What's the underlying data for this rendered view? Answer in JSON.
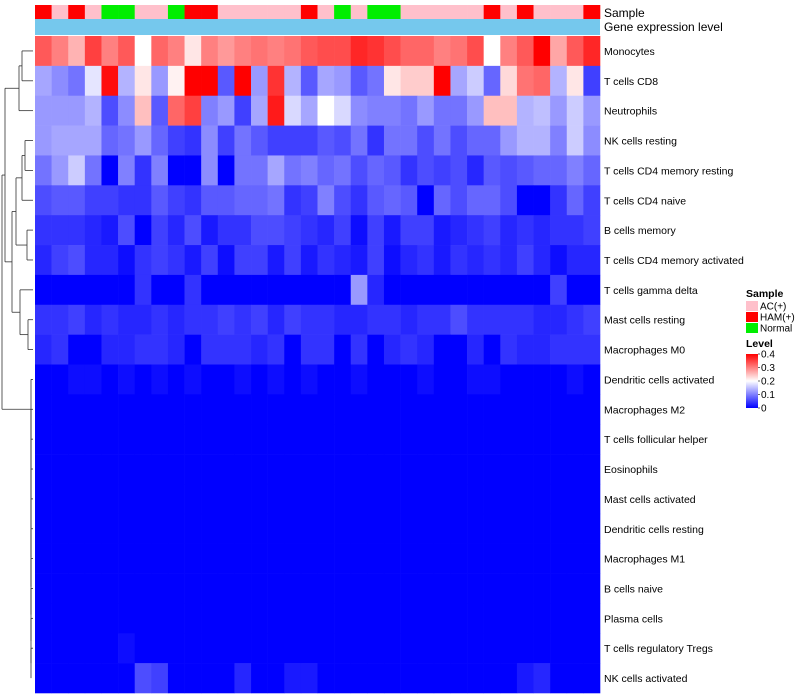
{
  "chart_data": {
    "type": "heatmap",
    "title": "",
    "annotations": {
      "sample_label": "Sample",
      "gene_label": "Gene expression level"
    },
    "columns": 34,
    "sample_groups": [
      "HAM(+)",
      "AC(+)",
      "HAM(+)",
      "AC(+)",
      "Normal",
      "Normal",
      "AC(+)",
      "AC(+)",
      "Normal",
      "HAM(+)",
      "HAM(+)",
      "AC(+)",
      "AC(+)",
      "AC(+)",
      "AC(+)",
      "AC(+)",
      "HAM(+)",
      "AC(+)",
      "Normal",
      "AC(+)",
      "Normal",
      "Normal",
      "AC(+)",
      "AC(+)",
      "AC(+)",
      "AC(+)",
      "AC(+)",
      "HAM(+)",
      "AC(+)",
      "HAM(+)",
      "AC(+)",
      "AC(+)",
      "AC(+)",
      "HAM(+)"
    ],
    "rows": [
      {
        "label": "Monocytes",
        "values": [
          0.33,
          0.3,
          0.26,
          0.35,
          0.3,
          0.33,
          0.2,
          0.32,
          0.3,
          0.22,
          0.3,
          0.28,
          0.3,
          0.31,
          0.3,
          0.31,
          0.33,
          0.34,
          0.34,
          0.37,
          0.36,
          0.34,
          0.32,
          0.32,
          0.3,
          0.31,
          0.34,
          0.2,
          0.3,
          0.33,
          0.4,
          0.27,
          0.33,
          0.37
        ]
      },
      {
        "label": "T cells CD8",
        "values": [
          0.13,
          0.11,
          0.09,
          0.18,
          0.39,
          0.14,
          0.22,
          0.12,
          0.21,
          0.4,
          0.4,
          0.07,
          0.4,
          0.12,
          0.36,
          0.14,
          0.07,
          0.13,
          0.12,
          0.07,
          0.09,
          0.22,
          0.24,
          0.24,
          0.4,
          0.13,
          0.16,
          0.08,
          0.23,
          0.31,
          0.32,
          0.14,
          0.22,
          0.05
        ]
      },
      {
        "label": "Neutrophils",
        "values": [
          0.12,
          0.12,
          0.12,
          0.14,
          0.06,
          0.11,
          0.25,
          0.07,
          0.32,
          0.35,
          0.1,
          0.12,
          0.05,
          0.13,
          0.38,
          0.17,
          0.13,
          0.2,
          0.17,
          0.11,
          0.1,
          0.1,
          0.09,
          0.12,
          0.09,
          0.09,
          0.12,
          0.25,
          0.25,
          0.14,
          0.15,
          0.12,
          0.16,
          0.12
        ]
      },
      {
        "label": "NK cells resting",
        "values": [
          0.12,
          0.13,
          0.13,
          0.13,
          0.08,
          0.09,
          0.12,
          0.08,
          0.05,
          0.04,
          0.11,
          0.05,
          0.09,
          0.07,
          0.05,
          0.05,
          0.05,
          0.07,
          0.06,
          0.09,
          0.04,
          0.09,
          0.09,
          0.06,
          0.09,
          0.06,
          0.08,
          0.08,
          0.12,
          0.14,
          0.14,
          0.1,
          0.16,
          0.11
        ]
      },
      {
        "label": "T cells CD4 memory resting",
        "values": [
          0.09,
          0.12,
          0.16,
          0.09,
          0.0,
          0.1,
          0.04,
          0.1,
          0.0,
          0.0,
          0.11,
          0.0,
          0.09,
          0.09,
          0.13,
          0.09,
          0.1,
          0.08,
          0.09,
          0.06,
          0.08,
          0.07,
          0.04,
          0.06,
          0.05,
          0.06,
          0.03,
          0.07,
          0.06,
          0.07,
          0.08,
          0.08,
          0.1,
          0.08
        ]
      },
      {
        "label": "T cells CD4 naive",
        "values": [
          0.06,
          0.07,
          0.07,
          0.05,
          0.05,
          0.04,
          0.04,
          0.07,
          0.05,
          0.04,
          0.07,
          0.07,
          0.08,
          0.08,
          0.09,
          0.04,
          0.05,
          0.1,
          0.06,
          0.04,
          0.07,
          0.08,
          0.07,
          0.0,
          0.08,
          0.06,
          0.08,
          0.08,
          0.06,
          0.0,
          0.0,
          0.04,
          0.08,
          0.05
        ]
      },
      {
        "label": "B cells memory",
        "values": [
          0.04,
          0.04,
          0.04,
          0.03,
          0.02,
          0.06,
          0.0,
          0.05,
          0.03,
          0.06,
          0.02,
          0.04,
          0.04,
          0.06,
          0.06,
          0.05,
          0.04,
          0.03,
          0.05,
          0.01,
          0.05,
          0.02,
          0.05,
          0.05,
          0.02,
          0.03,
          0.04,
          0.05,
          0.03,
          0.04,
          0.03,
          0.04,
          0.04,
          0.05
        ]
      },
      {
        "label": "T cells CD4 memory activated",
        "values": [
          0.03,
          0.05,
          0.06,
          0.03,
          0.03,
          0.01,
          0.04,
          0.05,
          0.04,
          0.02,
          0.05,
          0.01,
          0.05,
          0.05,
          0.02,
          0.05,
          0.02,
          0.04,
          0.03,
          0.02,
          0.05,
          0.01,
          0.03,
          0.04,
          0.02,
          0.04,
          0.03,
          0.04,
          0.03,
          0.05,
          0.03,
          0.01,
          0.03,
          0.03
        ]
      },
      {
        "label": "T cells gamma delta",
        "values": [
          0.0,
          0.0,
          0.0,
          0.0,
          0.0,
          0.0,
          0.04,
          0.0,
          0.0,
          0.04,
          0.0,
          0.0,
          0.0,
          0.0,
          0.0,
          0.0,
          0.0,
          0.0,
          0.0,
          0.12,
          0.03,
          0.0,
          0.0,
          0.0,
          0.0,
          0.0,
          0.0,
          0.0,
          0.0,
          0.0,
          0.0,
          0.05,
          0.0,
          0.0
        ]
      },
      {
        "label": "Mast cells resting",
        "values": [
          0.04,
          0.04,
          0.05,
          0.03,
          0.04,
          0.03,
          0.03,
          0.04,
          0.03,
          0.04,
          0.04,
          0.05,
          0.04,
          0.05,
          0.03,
          0.05,
          0.04,
          0.04,
          0.03,
          0.03,
          0.04,
          0.04,
          0.03,
          0.04,
          0.04,
          0.06,
          0.04,
          0.04,
          0.04,
          0.04,
          0.03,
          0.03,
          0.04,
          0.05
        ]
      },
      {
        "label": "Macrophages M0",
        "values": [
          0.03,
          0.04,
          0.0,
          0.0,
          0.03,
          0.03,
          0.04,
          0.04,
          0.03,
          0.0,
          0.04,
          0.04,
          0.04,
          0.03,
          0.04,
          0.0,
          0.04,
          0.04,
          0.0,
          0.04,
          0.0,
          0.03,
          0.04,
          0.03,
          0.0,
          0.0,
          0.03,
          0.0,
          0.04,
          0.03,
          0.03,
          0.04,
          0.04,
          0.04
        ]
      },
      {
        "label": "Dendritic cells activated",
        "values": [
          0.0,
          0.0,
          0.01,
          0.01,
          0.0,
          0.01,
          0.0,
          0.01,
          0.0,
          0.01,
          0.0,
          0.0,
          0.01,
          0.0,
          0.01,
          0.0,
          0.01,
          0.0,
          0.0,
          0.01,
          0.0,
          0.0,
          0.0,
          0.01,
          0.0,
          0.0,
          0.01,
          0.01,
          0.0,
          0.0,
          0.0,
          0.0,
          0.01,
          0.0
        ]
      },
      {
        "label": "Macrophages M2",
        "values": [
          0.0,
          0.0,
          0.0,
          0.0,
          0.0,
          0.0,
          0.0,
          0.0,
          0.0,
          0.0,
          0.0,
          0.0,
          0.0,
          0.0,
          0.0,
          0.0,
          0.0,
          0.0,
          0.0,
          0.0,
          0.0,
          0.0,
          0.0,
          0.0,
          0.0,
          0.0,
          0.0,
          0.0,
          0.0,
          0.0,
          0.0,
          0.0,
          0.0,
          0.0
        ]
      },
      {
        "label": "T cells follicular helper",
        "values": [
          0.0,
          0.0,
          0.0,
          0.0,
          0.0,
          0.0,
          0.0,
          0.0,
          0.0,
          0.0,
          0.0,
          0.0,
          0.0,
          0.0,
          0.0,
          0.0,
          0.0,
          0.0,
          0.0,
          0.0,
          0.0,
          0.0,
          0.0,
          0.0,
          0.0,
          0.0,
          0.0,
          0.0,
          0.0,
          0.0,
          0.0,
          0.0,
          0.0,
          0.0
        ]
      },
      {
        "label": "Eosinophils",
        "values": [
          0.0,
          0.0,
          0.0,
          0.0,
          0.0,
          0.0,
          0.0,
          0.0,
          0.0,
          0.0,
          0.0,
          0.0,
          0.0,
          0.0,
          0.0,
          0.0,
          0.0,
          0.0,
          0.0,
          0.0,
          0.0,
          0.0,
          0.0,
          0.0,
          0.0,
          0.0,
          0.0,
          0.0,
          0.0,
          0.0,
          0.0,
          0.0,
          0.0,
          0.0
        ]
      },
      {
        "label": "Mast cells activated",
        "values": [
          0.0,
          0.0,
          0.0,
          0.0,
          0.0,
          0.0,
          0.0,
          0.0,
          0.0,
          0.0,
          0.0,
          0.0,
          0.0,
          0.0,
          0.0,
          0.0,
          0.0,
          0.0,
          0.0,
          0.0,
          0.0,
          0.0,
          0.0,
          0.0,
          0.0,
          0.0,
          0.0,
          0.0,
          0.0,
          0.0,
          0.0,
          0.0,
          0.0,
          0.0
        ]
      },
      {
        "label": "Dendritic cells resting",
        "values": [
          0.0,
          0.0,
          0.0,
          0.0,
          0.0,
          0.0,
          0.0,
          0.0,
          0.0,
          0.0,
          0.0,
          0.0,
          0.0,
          0.0,
          0.0,
          0.0,
          0.0,
          0.0,
          0.0,
          0.0,
          0.0,
          0.0,
          0.0,
          0.0,
          0.0,
          0.0,
          0.0,
          0.0,
          0.0,
          0.0,
          0.0,
          0.0,
          0.0,
          0.0
        ]
      },
      {
        "label": "Macrophages M1",
        "values": [
          0.0,
          0.0,
          0.0,
          0.0,
          0.0,
          0.0,
          0.0,
          0.0,
          0.0,
          0.0,
          0.0,
          0.0,
          0.0,
          0.0,
          0.0,
          0.0,
          0.0,
          0.0,
          0.0,
          0.0,
          0.0,
          0.0,
          0.0,
          0.0,
          0.0,
          0.0,
          0.0,
          0.0,
          0.0,
          0.0,
          0.0,
          0.0,
          0.0,
          0.0
        ]
      },
      {
        "label": "B cells naive",
        "values": [
          0.0,
          0.0,
          0.0,
          0.0,
          0.0,
          0.0,
          0.0,
          0.0,
          0.0,
          0.0,
          0.0,
          0.0,
          0.0,
          0.0,
          0.0,
          0.0,
          0.0,
          0.0,
          0.0,
          0.0,
          0.0,
          0.0,
          0.0,
          0.0,
          0.0,
          0.0,
          0.0,
          0.0,
          0.0,
          0.0,
          0.0,
          0.0,
          0.0,
          0.0
        ]
      },
      {
        "label": "Plasma cells",
        "values": [
          0.0,
          0.0,
          0.0,
          0.0,
          0.0,
          0.0,
          0.0,
          0.0,
          0.0,
          0.0,
          0.0,
          0.0,
          0.0,
          0.0,
          0.0,
          0.0,
          0.0,
          0.0,
          0.0,
          0.0,
          0.0,
          0.0,
          0.0,
          0.0,
          0.0,
          0.0,
          0.0,
          0.0,
          0.0,
          0.0,
          0.0,
          0.0,
          0.0,
          0.0
        ]
      },
      {
        "label": "T cells regulatory  Tregs",
        "values": [
          0.0,
          0.0,
          0.0,
          0.0,
          0.0,
          0.01,
          0.0,
          0.0,
          0.0,
          0.0,
          0.0,
          0.0,
          0.0,
          0.0,
          0.0,
          0.0,
          0.0,
          0.0,
          0.0,
          0.0,
          0.0,
          0.0,
          0.0,
          0.0,
          0.0,
          0.0,
          0.0,
          0.0,
          0.0,
          0.0,
          0.0,
          0.0,
          0.0,
          0.0
        ]
      },
      {
        "label": "NK cells activated",
        "values": [
          0.0,
          0.0,
          0.0,
          0.0,
          0.0,
          0.0,
          0.06,
          0.05,
          0.0,
          0.0,
          0.0,
          0.0,
          0.03,
          0.0,
          0.0,
          0.02,
          0.02,
          0.0,
          0.0,
          0.0,
          0.0,
          0.0,
          0.0,
          0.0,
          0.0,
          0.0,
          0.0,
          0.0,
          0.0,
          0.02,
          0.03,
          0.0,
          0.0,
          0.0
        ]
      }
    ],
    "legend": {
      "sample": {
        "title": "Sample",
        "entries": [
          {
            "label": "AC(+)",
            "color": "#ffc0cb"
          },
          {
            "label": "HAM(+)",
            "color": "#ff0000"
          },
          {
            "label": "Normal",
            "color": "#00ee00"
          }
        ]
      },
      "level": {
        "title": "Level",
        "ticks": [
          "0.4",
          "0.3",
          "0.2",
          "0.1",
          "0"
        ],
        "tick_values": [
          0.4,
          0.3,
          0.2,
          0.1,
          0
        ],
        "range": [
          0,
          0.4
        ]
      }
    },
    "colors": {
      "low": "#0000ff",
      "mid": "#ffffff",
      "high": "#ff0000",
      "gene_bar": "#75c8ed"
    }
  }
}
